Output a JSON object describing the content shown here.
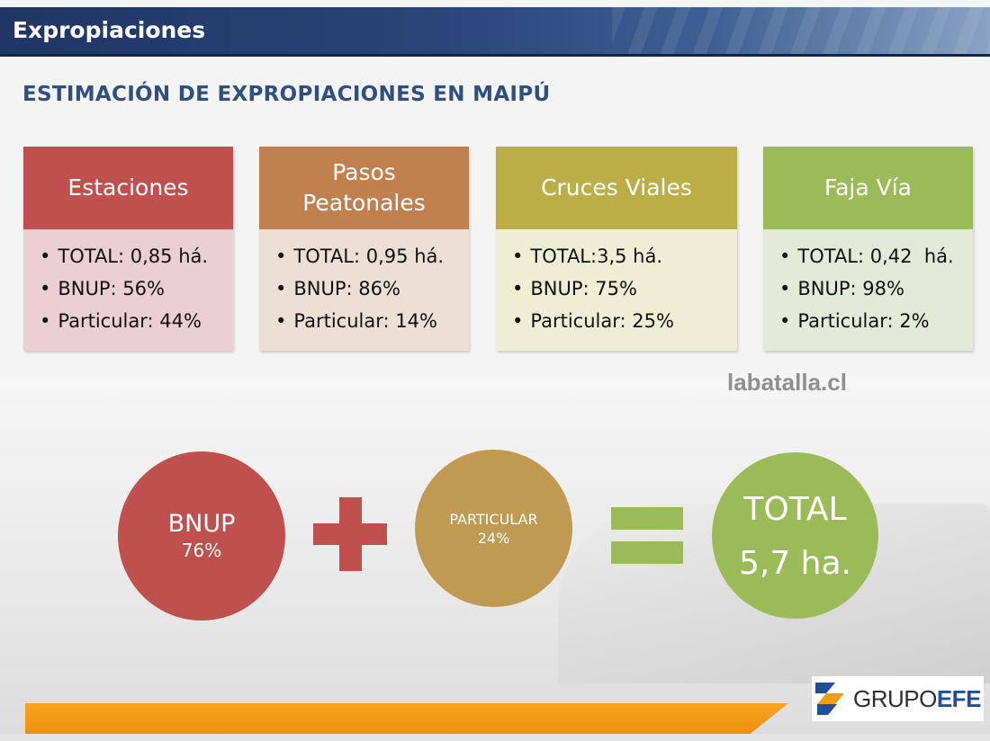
{
  "header": {
    "title": "Expropiaciones"
  },
  "subtitle": "ESTIMACIÓN DE EXPROPIACIONES EN MAIPÚ",
  "cards": [
    {
      "title": "Estaciones",
      "items": [
        "TOTAL: 0,85 há.",
        "BNUP: 56%",
        "Particular: 44%"
      ]
    },
    {
      "title": "Pasos Peatonales",
      "items": [
        "TOTAL: 0,95 há.",
        "BNUP: 86%",
        "Particular: 14%"
      ]
    },
    {
      "title": "Cruces Viales",
      "items": [
        "TOTAL:3,5 há.",
        "BNUP: 75%",
        "Particular: 25%"
      ]
    },
    {
      "title": "Faja Vía",
      "items": [
        "TOTAL: 0,42  há.",
        "BNUP: 98%",
        "Particular: 2%"
      ]
    }
  ],
  "watermark": "labatalla.cl",
  "equation": {
    "bnup": {
      "label": "BNUP",
      "value": "76%"
    },
    "particular": {
      "label": "PARTICULAR",
      "value": "24%"
    },
    "total": {
      "label": "TOTAL",
      "value": "5,7 ha."
    }
  },
  "logo": {
    "part1": "GRUPO",
    "part2": "EFE"
  },
  "colors": {
    "header": "#2a4579",
    "estaciones": "#c0504d",
    "pasos": "#c0804e",
    "cruces": "#bcae47",
    "faja": "#9bbb59",
    "footer": "#f39c1c"
  }
}
